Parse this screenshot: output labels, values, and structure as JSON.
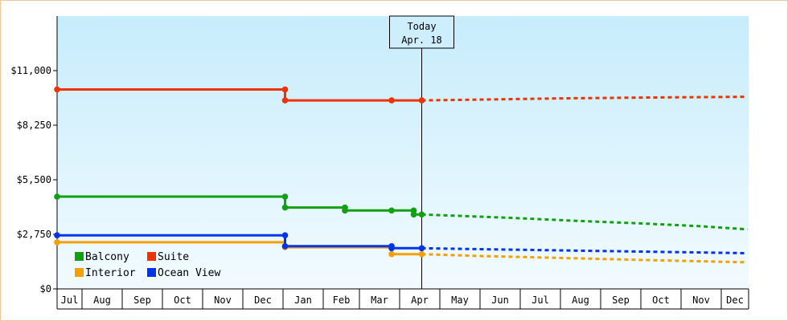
{
  "chart_data": {
    "type": "line",
    "title": "",
    "xlabel": "",
    "ylabel": "",
    "ylim": [
      0,
      13750
    ],
    "y_ticks": [
      0,
      2750,
      5500,
      8250,
      11000
    ],
    "y_tick_labels": [
      "$0",
      "$2,750",
      "$5,500",
      "$8,250",
      "$11,000"
    ],
    "x_start": "Jul",
    "months": [
      "Jul",
      "Aug",
      "Sep",
      "Oct",
      "Nov",
      "Dec",
      "Jan",
      "Feb",
      "Mar",
      "Apr",
      "May",
      "Jun",
      "Jul",
      "Aug",
      "Sep",
      "Oct",
      "Nov",
      "Dec"
    ],
    "today": {
      "label": "Today",
      "date": "Apr. 18",
      "month_pos": 9.55
    },
    "legend": {
      "position": "bottom-left",
      "columns": 2
    },
    "series": [
      {
        "name": "Balcony",
        "color": "#11a011",
        "history": [
          [
            0,
            4650
          ],
          [
            6.05,
            4650
          ],
          [
            6.05,
            4100
          ],
          [
            7.6,
            4100
          ],
          [
            7.6,
            3950
          ],
          [
            8.8,
            3950
          ],
          [
            8.8,
            3950
          ],
          [
            9.35,
            3950
          ],
          [
            9.35,
            3750
          ],
          [
            9.55,
            3750
          ]
        ],
        "markers": [
          [
            0,
            4650
          ],
          [
            6.05,
            4650
          ],
          [
            6.05,
            4100
          ],
          [
            7.6,
            4100
          ],
          [
            7.6,
            3950
          ],
          [
            8.8,
            3950
          ],
          [
            9.35,
            3950
          ],
          [
            9.35,
            3750
          ],
          [
            9.55,
            3750
          ]
        ],
        "forecast": [
          [
            9.55,
            3750
          ],
          [
            10.5,
            3680
          ],
          [
            12,
            3560
          ],
          [
            13.5,
            3420
          ],
          [
            15,
            3300
          ],
          [
            16.5,
            3160
          ],
          [
            17.95,
            3000
          ]
        ]
      },
      {
        "name": "Suite",
        "color": "#ee3300",
        "history": [
          [
            0,
            10050
          ],
          [
            6.05,
            10050
          ],
          [
            6.05,
            9500
          ],
          [
            9.55,
            9500
          ]
        ],
        "markers": [
          [
            0,
            10050
          ],
          [
            6.05,
            10050
          ],
          [
            6.05,
            9500
          ],
          [
            8.8,
            9500
          ],
          [
            9.55,
            9500
          ]
        ],
        "forecast": [
          [
            9.55,
            9500
          ],
          [
            11,
            9540
          ],
          [
            13,
            9600
          ],
          [
            15,
            9640
          ],
          [
            17.95,
            9680
          ]
        ]
      },
      {
        "name": "Interior",
        "color": "#f5a000",
        "history": [
          [
            0,
            2350
          ],
          [
            6.05,
            2350
          ],
          [
            6.05,
            2100
          ],
          [
            8.8,
            2100
          ],
          [
            8.8,
            1750
          ],
          [
            9.55,
            1750
          ]
        ],
        "markers": [
          [
            0,
            2350
          ],
          [
            6.05,
            2100
          ],
          [
            8.8,
            1750
          ],
          [
            9.55,
            1750
          ]
        ],
        "forecast": [
          [
            9.55,
            1750
          ],
          [
            11,
            1660
          ],
          [
            13,
            1560
          ],
          [
            15,
            1460
          ],
          [
            17.95,
            1340
          ]
        ]
      },
      {
        "name": "Ocean View",
        "color": "#0033ee",
        "history": [
          [
            0,
            2700
          ],
          [
            6.05,
            2700
          ],
          [
            6.05,
            2150
          ],
          [
            8.8,
            2150
          ],
          [
            8.8,
            2050
          ],
          [
            9.55,
            2050
          ]
        ],
        "markers": [
          [
            0,
            2700
          ],
          [
            6.05,
            2700
          ],
          [
            6.05,
            2150
          ],
          [
            8.8,
            2150
          ],
          [
            8.8,
            2050
          ],
          [
            9.55,
            2050
          ]
        ],
        "forecast": [
          [
            9.55,
            2050
          ],
          [
            11,
            2000
          ],
          [
            13,
            1940
          ],
          [
            15,
            1880
          ],
          [
            17.95,
            1800
          ]
        ]
      }
    ]
  }
}
